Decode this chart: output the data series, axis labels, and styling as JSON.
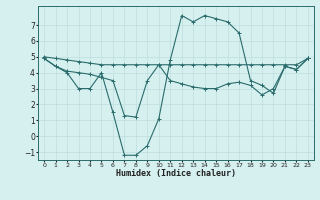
{
  "xlabel": "Humidex (Indice chaleur)",
  "bg_color": "#d6f0f0",
  "grid_color": "#c0dede",
  "line_color": "#2a6b6b",
  "xlim": [
    -0.5,
    23.5
  ],
  "ylim": [
    -1.5,
    8.2
  ],
  "yticks": [
    -1,
    0,
    1,
    2,
    3,
    4,
    5,
    6,
    7
  ],
  "xticks": [
    0,
    1,
    2,
    3,
    4,
    5,
    6,
    7,
    8,
    9,
    10,
    11,
    12,
    13,
    14,
    15,
    16,
    17,
    18,
    19,
    20,
    21,
    22,
    23
  ],
  "lines": [
    {
      "x": [
        0,
        1,
        2,
        3,
        4,
        5,
        6,
        7,
        8,
        9,
        10,
        11,
        12,
        13,
        14,
        15,
        16,
        17,
        18,
        19,
        20,
        21,
        22,
        23
      ],
      "y": [
        5.0,
        4.9,
        4.8,
        4.7,
        4.6,
        4.5,
        4.5,
        4.5,
        4.5,
        4.5,
        4.5,
        4.5,
        4.5,
        4.5,
        4.5,
        4.5,
        4.5,
        4.5,
        4.5,
        4.5,
        4.5,
        4.5,
        4.5,
        4.9
      ]
    },
    {
      "x": [
        0,
        1,
        2,
        3,
        4,
        5,
        6,
        7,
        8,
        9,
        10,
        11,
        12,
        13,
        14,
        15,
        16,
        17,
        18,
        19,
        20,
        21,
        22,
        23
      ],
      "y": [
        4.9,
        4.4,
        4.0,
        3.0,
        3.0,
        4.0,
        1.5,
        -1.2,
        -1.2,
        -0.6,
        1.1,
        4.8,
        7.6,
        7.2,
        7.6,
        7.4,
        7.2,
        6.5,
        3.5,
        3.2,
        2.7,
        4.4,
        4.2,
        4.9
      ]
    },
    {
      "x": [
        0,
        1,
        2,
        3,
        4,
        5,
        6,
        7,
        8,
        9,
        10,
        11,
        12,
        13,
        14,
        15,
        16,
        17,
        18,
        19,
        20,
        21,
        22,
        23
      ],
      "y": [
        4.9,
        4.4,
        4.1,
        4.0,
        3.9,
        3.7,
        3.5,
        1.3,
        1.2,
        3.5,
        4.5,
        3.5,
        3.3,
        3.1,
        3.0,
        3.0,
        3.3,
        3.4,
        3.2,
        2.6,
        3.0,
        4.4,
        4.2,
        4.9
      ]
    }
  ]
}
